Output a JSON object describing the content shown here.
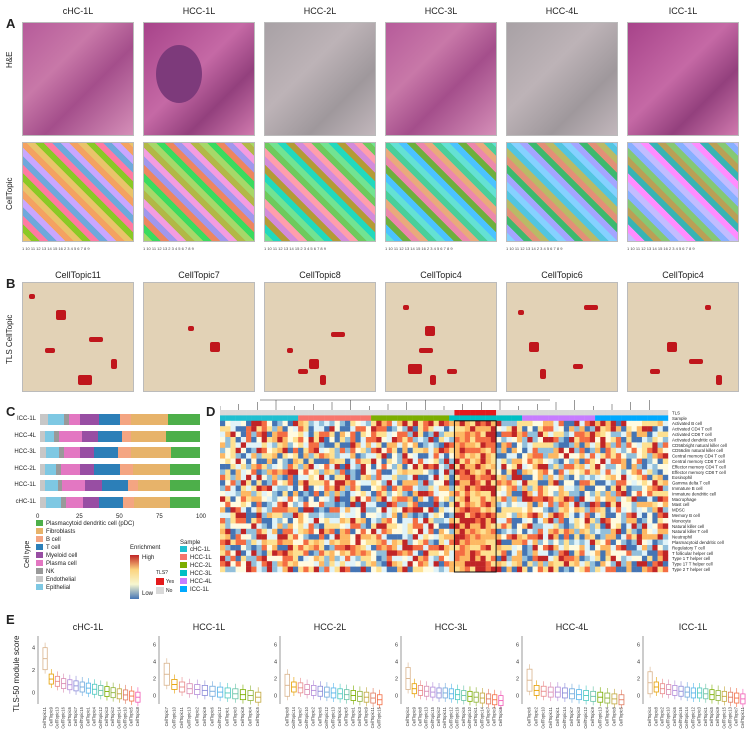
{
  "panels": {
    "A": "A",
    "B": "B",
    "C": "C",
    "D": "D",
    "E": "E"
  },
  "samples": [
    "cHC-1L",
    "HCC-1L",
    "HCC-2L",
    "HCC-3L",
    "HCC-4L",
    "ICC-1L"
  ],
  "row_labels": {
    "he": "H&E",
    "celltopic": "CellTopic",
    "tls": "TLS CellTopic"
  },
  "celltopic_legend_ticks": [
    "1 10 11 12 13 14 15 16 2 3 4 5 6 7 8 9",
    "1 10 11 12 13 2 3 4 5 6 7 8 9",
    "1 10 11 12 13 14 15 2 3 4 5 6 7 8 9",
    "1 10 11 12 13 14 15 16 2 3 4 5 6 7 8 9",
    "1 10 11 12 13 14 2 3 4 5 6 7 8 9",
    "1 10 11 12 13 14 15 16 2 3 4 5 6 7 8 9"
  ],
  "tls_titles": [
    "CellTopic11",
    "CellTopic7",
    "CellTopic8",
    "CellTopic4",
    "CellTopic6",
    "CellTopic4"
  ],
  "panel_c": {
    "rows": [
      "ICC-1L",
      "HCC-4L",
      "HCC-3L",
      "HCC-2L",
      "HCC-1L",
      "cHC-1L"
    ],
    "x_ticks": [
      "0",
      "25",
      "50",
      "75",
      "100"
    ],
    "colors": {
      "pdc": "#4daf4a",
      "fibro": "#e7b36a",
      "bcell": "#f4a582",
      "tcell": "#2c7fb8",
      "myeloid": "#984ea3",
      "plasma": "#e377c2",
      "nk": "#999999",
      "endo": "#c7c7c7",
      "epi": "#7ec8e3"
    },
    "legend_title": "Cell type",
    "legend": [
      {
        "label": "Plasmacytoid dendritic cell (pDC)",
        "color": "#4daf4a"
      },
      {
        "label": "Fibroblasts",
        "color": "#e7b36a"
      },
      {
        "label": "B cell",
        "color": "#f4a582"
      },
      {
        "label": "T cell",
        "color": "#2c7fb8"
      },
      {
        "label": "Myeloid cell",
        "color": "#984ea3"
      },
      {
        "label": "Plasma cell",
        "color": "#e377c2"
      },
      {
        "label": "NK",
        "color": "#999999"
      },
      {
        "label": "Endothelial",
        "color": "#c7c7c7"
      },
      {
        "label": "Epithelial",
        "color": "#7ec8e3"
      }
    ],
    "enrichment_title": "Enrichment",
    "enrichment_high": "High",
    "enrichment_low": "Low",
    "tls_title": "TLS?",
    "tls_yes": "Yes",
    "tls_no": "No",
    "sample_title": "Sample",
    "sample_legend": [
      {
        "label": "cHC-1L",
        "color": "#1fbfd1"
      },
      {
        "label": "HCC-1L",
        "color": "#f8766d"
      },
      {
        "label": "HCC-2L",
        "color": "#7cae00"
      },
      {
        "label": "HCC-3L",
        "color": "#00bfc4"
      },
      {
        "label": "HCC-4L",
        "color": "#c77cff"
      },
      {
        "label": "ICC-1L",
        "color": "#00a9ff"
      }
    ]
  },
  "chart_data": [
    {
      "type": "bar",
      "title": "",
      "categories": [
        "ICC-1L",
        "HCC-4L",
        "HCC-3L",
        "HCC-2L",
        "HCC-1L",
        "cHC-1L"
      ],
      "xlabel": "",
      "ylabel": "",
      "xlim": [
        0,
        100
      ],
      "series": [
        {
          "name": "Epithelial",
          "values": [
            5,
            3,
            4,
            3,
            3,
            4
          ]
        },
        {
          "name": "Endothelial",
          "values": [
            10,
            6,
            8,
            7,
            8,
            9
          ]
        },
        {
          "name": "NK",
          "values": [
            3,
            3,
            3,
            3,
            3,
            3
          ]
        },
        {
          "name": "Plasma cell",
          "values": [
            7,
            14,
            10,
            12,
            14,
            11
          ]
        },
        {
          "name": "Myeloid cell",
          "values": [
            12,
            10,
            9,
            9,
            11,
            10
          ]
        },
        {
          "name": "T cell",
          "values": [
            13,
            15,
            15,
            16,
            16,
            15
          ]
        },
        {
          "name": "B cell",
          "values": [
            7,
            6,
            8,
            8,
            6,
            7
          ]
        },
        {
          "name": "Fibroblasts",
          "values": [
            23,
            22,
            25,
            23,
            20,
            22
          ]
        },
        {
          "name": "Plasmacytoid dendritic cell (pDC)",
          "values": [
            20,
            21,
            18,
            19,
            19,
            19
          ]
        }
      ]
    },
    {
      "type": "heatmap",
      "title": "",
      "row_labels": [
        "TLS",
        "Sample",
        "Activated B cell",
        "Activated CD4 T cell",
        "Activated CD8 T cell",
        "Activated dendritic cell",
        "CD56bright natural killer cell",
        "CD56dim natural killer cell",
        "Central memory CD4 T cell",
        "Central memory CD8 T cell",
        "Effector memory CD4 T cell",
        "Effector memory CD8 T cell",
        "Eosinophil",
        "Gamma delta T cell",
        "Immature B cell",
        "Immature dendritic cell",
        "Macrophage",
        "Mast cell",
        "MDSC",
        "Memory B cell",
        "Monocyte",
        "Natural killer cell",
        "Natural killer T cell",
        "Neutrophil",
        "Plasmacytoid dendritic cell",
        "Regulatory T cell",
        "T follicular helper cell",
        "Type 1 T helper cell",
        "Type 17 T helper cell",
        "Type 2 T helper cell"
      ],
      "n_columns": 86
    },
    {
      "type": "box",
      "ylabel": "TLS-50 module score",
      "facets": [
        {
          "title": "cHC-1L",
          "y_ticks": [
            "0",
            "2",
            "4"
          ],
          "categories": [
            "CellTopic11",
            "CellTopic9",
            "CellTopic13",
            "CellTopic16",
            "CellTopic6",
            "CellTopic7",
            "CellTopic15",
            "CellTopic1",
            "CellTopic4",
            "CellTopic12",
            "CellTopic3",
            "CellTopic2",
            "CellTopic14",
            "CellTopic10",
            "CellTopic5",
            "CellTopic8"
          ],
          "medians": [
            3.0,
            1.2,
            1.0,
            0.8,
            0.7,
            0.6,
            0.5,
            0.4,
            0.3,
            0.2,
            0.1,
            0.0,
            -0.1,
            -0.2,
            -0.3,
            -0.4
          ]
        },
        {
          "title": "HCC-1L",
          "y_ticks": [
            "0",
            "2",
            "4",
            "6"
          ],
          "categories": [
            "CellTopic7",
            "CellTopic10",
            "CellTopic11",
            "CellTopic13",
            "CellTopic2",
            "CellTopic9",
            "CellTopic6",
            "CellTopic12",
            "CellTopic1",
            "CellTopic3",
            "CellTopic8",
            "CellTopic4",
            "CellTopic5"
          ],
          "medians": [
            2.5,
            1.3,
            1.0,
            0.8,
            0.7,
            0.6,
            0.5,
            0.4,
            0.3,
            0.2,
            0.1,
            0.0,
            -0.2
          ]
        },
        {
          "title": "HCC-2L",
          "y_ticks": [
            "0",
            "2",
            "4",
            "6"
          ],
          "categories": [
            "CellTopic8",
            "CellTopic14",
            "CellTopic7",
            "CellTopic10",
            "CellTopic2",
            "CellTopic6",
            "CellTopic12",
            "CellTopic13",
            "CellTopic4",
            "CellTopic5",
            "CellTopic1",
            "CellTopic3",
            "CellTopic9",
            "CellTopic11",
            "CellTopic15"
          ],
          "medians": [
            1.2,
            1.0,
            0.9,
            0.7,
            0.6,
            0.5,
            0.4,
            0.3,
            0.2,
            0.1,
            0.0,
            -0.1,
            -0.2,
            -0.3,
            -0.5
          ]
        },
        {
          "title": "HCC-3L",
          "y_ticks": [
            "0",
            "2",
            "4",
            "6"
          ],
          "categories": [
            "CellTopic4",
            "CellTopic9",
            "CellTopic8",
            "CellTopic13",
            "CellTopic15",
            "CellTopic2",
            "CellTopic11",
            "CellTopic12",
            "CellTopic16",
            "CellTopic6",
            "CellTopic10",
            "CellTopic1",
            "CellTopic14",
            "CellTopic7",
            "CellTopic3",
            "CellTopic5"
          ],
          "medians": [
            2.0,
            0.8,
            0.6,
            0.5,
            0.4,
            0.3,
            0.3,
            0.2,
            0.1,
            0.0,
            -0.1,
            -0.2,
            -0.3,
            -0.4,
            -0.5,
            -0.6
          ]
        },
        {
          "title": "HCC-4L",
          "y_ticks": [
            "0",
            "2",
            "4",
            "6"
          ],
          "categories": [
            "CellTopic6",
            "CellTopic2",
            "CellTopic10",
            "CellTopic11",
            "CellTopic1",
            "CellTopic14",
            "CellTopic7",
            "CellTopic3",
            "CellTopic12",
            "CellTopic9",
            "CellTopic13",
            "CellTopic4",
            "CellTopic8",
            "CellTopic5"
          ],
          "medians": [
            1.8,
            0.6,
            0.5,
            0.4,
            0.4,
            0.3,
            0.2,
            0.1,
            0.0,
            -0.1,
            -0.2,
            -0.3,
            -0.4,
            -0.5
          ]
        },
        {
          "title": "ICC-1L",
          "y_ticks": [
            "0",
            "2",
            "4",
            "6"
          ],
          "categories": [
            "CellTopic4",
            "CellTopic8",
            "CellTopic2",
            "CellTopic10",
            "CellTopic6",
            "CellTopic16",
            "CellTopic14",
            "CellTopic12",
            "CellTopic3",
            "CellTopic1",
            "CellTopic5",
            "CellTopic9",
            "CellTopic15",
            "CellTopic13",
            "CellTopic7",
            "CellTopic11"
          ],
          "medians": [
            1.5,
            1.0,
            0.8,
            0.7,
            0.6,
            0.5,
            0.4,
            0.3,
            0.3,
            0.2,
            0.1,
            0.0,
            -0.1,
            -0.2,
            -0.3,
            -0.4
          ]
        }
      ]
    }
  ]
}
